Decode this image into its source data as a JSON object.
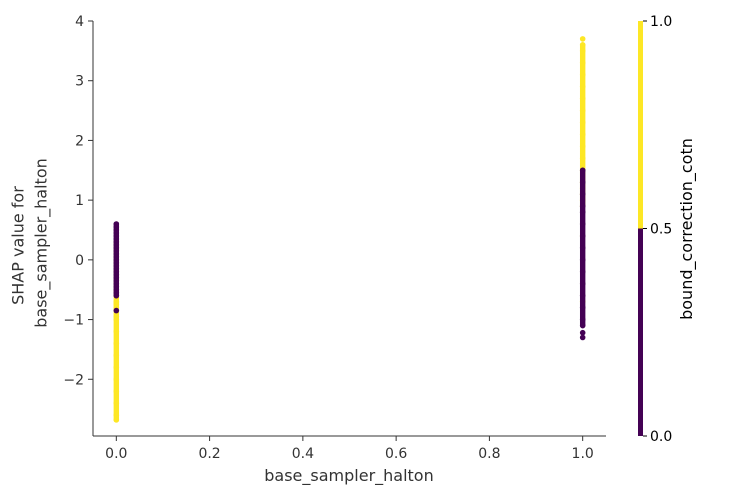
{
  "chart_data": {
    "type": "scatter",
    "title": "",
    "xlabel": "base_sampler_halton",
    "ylabel_lines": [
      "SHAP value for",
      "base_sampler_halton"
    ],
    "xlim": [
      -0.05,
      1.05
    ],
    "ylim": [
      -2.95,
      4.0
    ],
    "x_ticks": [
      0.0,
      0.2,
      0.4,
      0.6,
      0.8,
      1.0
    ],
    "x_tick_labels": [
      "0.0",
      "0.2",
      "0.4",
      "0.6",
      "0.8",
      "1.0"
    ],
    "y_ticks": [
      -2,
      -1,
      0,
      1,
      2,
      3,
      4
    ],
    "y_tick_labels": [
      "−2",
      "−1",
      "0",
      "1",
      "2",
      "3",
      "4"
    ],
    "grid": false,
    "colors": {
      "low": "#440154",
      "high": "#fde725",
      "axis": "#333333"
    },
    "colorbar": {
      "label": "bound_correction_cotn",
      "ticks": [
        0.0,
        0.5,
        1.0
      ],
      "tick_labels": [
        "0.0",
        "0.5",
        "1.0"
      ]
    },
    "series": [
      {
        "x": 0.0,
        "color_value": 1.0,
        "y_segments": [
          [
            -2.68,
            -0.72
          ],
          [
            -0.72,
            0.3
          ]
        ],
        "y_points": [
          -2.68,
          -2.6,
          -2.4,
          -2.2,
          -2.0,
          -1.8,
          -1.6,
          -1.4,
          -1.2,
          -1.0,
          -0.95,
          -0.8,
          -0.72,
          -0.7,
          -0.75
        ]
      },
      {
        "x": 0.0,
        "color_value": 0.0,
        "y_segments": [
          [
            -0.6,
            0.6
          ]
        ],
        "y_points": [
          0.6,
          0.55,
          0.5,
          0.45,
          0.4,
          0.35,
          0.3,
          0.25,
          0.2,
          0.15,
          0.1,
          0.05,
          0.0,
          -0.05,
          -0.1,
          -0.15,
          -0.2,
          -0.25,
          -0.3,
          -0.35,
          -0.4,
          -0.45,
          -0.5,
          -0.55,
          -0.6,
          -0.85
        ]
      },
      {
        "x": 1.0,
        "color_value": 1.0,
        "y_segments": [
          [
            0.9,
            3.6
          ]
        ],
        "y_points": [
          3.7,
          3.6,
          3.5,
          3.3,
          3.1,
          2.9,
          2.7,
          2.5,
          2.3,
          2.1,
          1.9,
          1.7,
          1.5,
          1.3,
          1.2,
          1.1,
          1.0,
          0.9,
          0.4,
          -0.7
        ]
      },
      {
        "x": 1.0,
        "color_value": 0.0,
        "y_segments": [
          [
            -1.1,
            1.5
          ]
        ],
        "y_points": [
          1.5,
          1.3,
          1.1,
          0.9,
          0.8,
          0.6,
          0.4,
          0.2,
          0.0,
          -0.2,
          -0.4,
          -0.6,
          -0.8,
          -1.0,
          -1.1,
          -1.22,
          -1.3
        ]
      }
    ]
  }
}
